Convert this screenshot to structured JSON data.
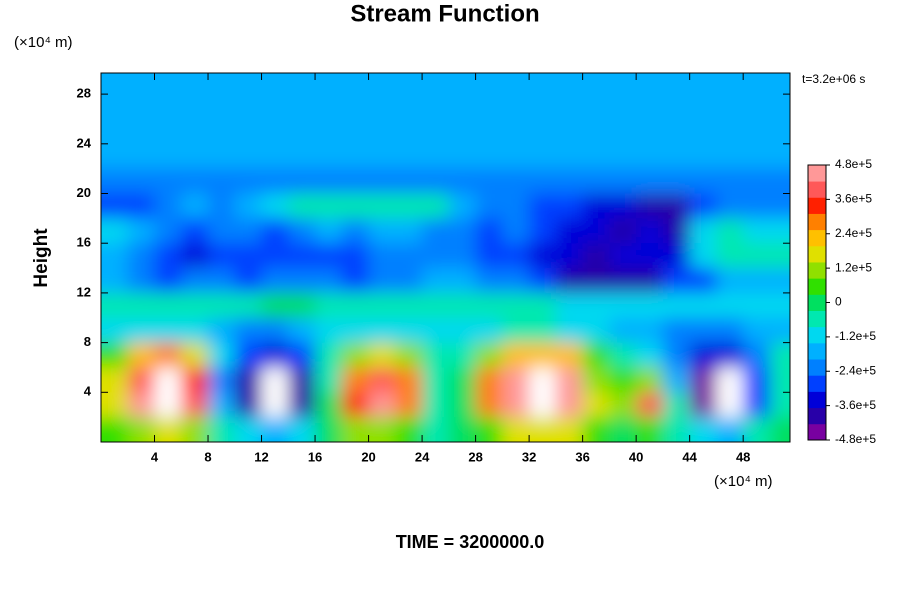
{
  "chart_data": {
    "type": "contour",
    "title": "Stream Function",
    "ylabel": "Height",
    "y_unit_label": "(×10⁴ m)",
    "x_unit_label": "(×10⁴ m)",
    "time_note": "t=3.2e+06 s",
    "footer": "TIME = 3200000.0",
    "xlim": [
      0,
      51.5
    ],
    "ylim": [
      0,
      29.7
    ],
    "xticks": [
      4,
      8,
      12,
      16,
      20,
      24,
      28,
      32,
      36,
      40,
      44,
      48
    ],
    "yticks": [
      4,
      8,
      12,
      16,
      20,
      24,
      28
    ],
    "grid": false,
    "x": [
      1,
      3,
      5,
      7,
      9,
      11,
      13,
      15,
      17,
      19,
      21,
      23,
      25,
      27,
      29,
      31,
      33,
      35,
      37,
      39,
      41,
      43,
      45,
      47,
      49,
      51
    ],
    "y": [
      29,
      27,
      25,
      23,
      21,
      19,
      17,
      15,
      13,
      11,
      9,
      7,
      5,
      3,
      1
    ],
    "z": [
      [
        -180000.0,
        -180000.0,
        -180000.0,
        -180000.0,
        -180000.0,
        -180000.0,
        -180000.0,
        -180000.0,
        -180000.0,
        -180000.0,
        -180000.0,
        -180000.0,
        -180000.0,
        -180000.0,
        -180000.0,
        -180000.0,
        -180000.0,
        -180000.0,
        -180000.0,
        -180000.0,
        -180000.0,
        -180000.0,
        -180000.0,
        -180000.0,
        -180000.0,
        -180000.0
      ],
      [
        -180000.0,
        -180000.0,
        -180000.0,
        -180000.0,
        -180000.0,
        -180000.0,
        -180000.0,
        -180000.0,
        -180000.0,
        -180000.0,
        -180000.0,
        -180000.0,
        -180000.0,
        -180000.0,
        -180000.0,
        -180000.0,
        -180000.0,
        -180000.0,
        -180000.0,
        -180000.0,
        -180000.0,
        -180000.0,
        -180000.0,
        -180000.0,
        -180000.0,
        -180000.0
      ],
      [
        -180000.0,
        -180000.0,
        -180000.0,
        -180000.0,
        -180000.0,
        -180000.0,
        -180000.0,
        -180000.0,
        -180000.0,
        -180000.0,
        -180000.0,
        -180000.0,
        -170000.0,
        -170000.0,
        -170000.0,
        -170000.0,
        -180000.0,
        -180000.0,
        -180000.0,
        -180000.0,
        -180000.0,
        -180000.0,
        -180000.0,
        -180000.0,
        -180000.0,
        -180000.0
      ],
      [
        -190000.0,
        -190000.0,
        -190000.0,
        -190000.0,
        -190000.0,
        -190000.0,
        -190000.0,
        -190000.0,
        -190000.0,
        -190000.0,
        -190000.0,
        -180000.0,
        -170000.0,
        -170000.0,
        -170000.0,
        -170000.0,
        -170000.0,
        -190000.0,
        -190000.0,
        -190000.0,
        -190000.0,
        -190000.0,
        -190000.0,
        -190000.0,
        -190000.0,
        -190000.0
      ],
      [
        -200000.0,
        -200000.0,
        -200000.0,
        -200000.0,
        -200000.0,
        -200000.0,
        -220000.0,
        -220000.0,
        -220000.0,
        -220000.0,
        -220000.0,
        -220000.0,
        -220000.0,
        -220000.0,
        -220000.0,
        -220000.0,
        -220000.0,
        -220000.0,
        -220000.0,
        -220000.0,
        -220000.0,
        -220000.0,
        -220000.0,
        -220000.0,
        -220000.0,
        -220000.0
      ],
      [
        -260000.0,
        -300000.0,
        -240000.0,
        -160000.0,
        -220000.0,
        -180000.0,
        -140000.0,
        -80000.0,
        -60000.0,
        -50000.0,
        -50000.0,
        -60000.0,
        -80000.0,
        -160000.0,
        -200000.0,
        -220000.0,
        -260000.0,
        -300000.0,
        -320000.0,
        -340000.0,
        -380000.0,
        -400000.0,
        -280000.0,
        -200000.0,
        -220000.0,
        -240000.0
      ],
      [
        -120000.0,
        -160000.0,
        -220000.0,
        -260000.0,
        -200000.0,
        -240000.0,
        -280000.0,
        -220000.0,
        -180000.0,
        -200000.0,
        -180000.0,
        -160000.0,
        -200000.0,
        -240000.0,
        -260000.0,
        -240000.0,
        -300000.0,
        -340000.0,
        -360000.0,
        -380000.0,
        -360000.0,
        -400000.0,
        -140000.0,
        -80000.0,
        -100000.0,
        -120000.0
      ],
      [
        -160000.0,
        -240000.0,
        -300000.0,
        -320000.0,
        -260000.0,
        -300000.0,
        -260000.0,
        -280000.0,
        -300000.0,
        -260000.0,
        -220000.0,
        -240000.0,
        -200000.0,
        -220000.0,
        -260000.0,
        -280000.0,
        -320000.0,
        -360000.0,
        -380000.0,
        -360000.0,
        -340000.0,
        -320000.0,
        -120000.0,
        -60000.0,
        -40000.0,
        -60000.0
      ],
      [
        -180000.0,
        -200000.0,
        -280000.0,
        -220000.0,
        -240000.0,
        -260000.0,
        -220000.0,
        -200000.0,
        -240000.0,
        -260000.0,
        -240000.0,
        -220000.0,
        -180000.0,
        -180000.0,
        -200000.0,
        -220000.0,
        -280000.0,
        -380000.0,
        -400000.0,
        -400000.0,
        -380000.0,
        -300000.0,
        -260000.0,
        -180000.0,
        -160000.0,
        -180000.0
      ],
      [
        -80000.0,
        -60000.0,
        -80000.0,
        -60000.0,
        -40000.0,
        -30000.0,
        -20000.0,
        -20000.0,
        -30000.0,
        -40000.0,
        -40000.0,
        -30000.0,
        -30000.0,
        -40000.0,
        -60000.0,
        -60000.0,
        -80000.0,
        -100000.0,
        -120000.0,
        -140000.0,
        -140000.0,
        -120000.0,
        -140000.0,
        -100000.0,
        -100000.0,
        -120000.0
      ],
      [
        -140000.0,
        -120000.0,
        -100000.0,
        -100000.0,
        -160000.0,
        -200000.0,
        -220000.0,
        -180000.0,
        -120000.0,
        -100000.0,
        -100000.0,
        -120000.0,
        -140000.0,
        -120000.0,
        -100000.0,
        -80000.0,
        -80000.0,
        -100000.0,
        -140000.0,
        -160000.0,
        -160000.0,
        -200000.0,
        -240000.0,
        -220000.0,
        -180000.0,
        -160000.0
      ],
      [
        80000.0,
        220000.0,
        260000.0,
        160000.0,
        -140000.0,
        -300000.0,
        -360000.0,
        -280000.0,
        -60000.0,
        120000.0,
        160000.0,
        100000.0,
        -80000.0,
        -40000.0,
        100000.0,
        200000.0,
        240000.0,
        200000.0,
        60000.0,
        -60000.0,
        -100000.0,
        -220000.0,
        -340000.0,
        -360000.0,
        -200000.0,
        -80000.0
      ],
      [
        180000.0,
        420000.0,
        520000.0,
        360000.0,
        -200000.0,
        -420000.0,
        -520000.0,
        -380000.0,
        -40000.0,
        300000.0,
        400000.0,
        260000.0,
        -60000.0,
        20000.0,
        280000.0,
        460000.0,
        520000.0,
        460000.0,
        140000.0,
        40000.0,
        100000.0,
        -160000.0,
        -460000.0,
        -520000.0,
        -260000.0,
        -60000.0
      ],
      [
        160000.0,
        440000.0,
        540000.0,
        380000.0,
        -160000.0,
        -420000.0,
        -540000.0,
        -380000.0,
        -20000.0,
        320000.0,
        440000.0,
        280000.0,
        -80000.0,
        20000.0,
        300000.0,
        480000.0,
        540000.0,
        480000.0,
        160000.0,
        120000.0,
        380000.0,
        -60000.0,
        -480000.0,
        -540000.0,
        -280000.0,
        -40000.0
      ],
      [
        40000.0,
        140000.0,
        180000.0,
        120000.0,
        -60000.0,
        -140000.0,
        -160000.0,
        -120000.0,
        -20000.0,
        100000.0,
        140000.0,
        80000.0,
        -60000.0,
        0,
        80000.0,
        160000.0,
        180000.0,
        160000.0,
        40000.0,
        20000.0,
        80000.0,
        -40000.0,
        -140000.0,
        -160000.0,
        -80000.0,
        -20000.0
      ]
    ],
    "zlim": [
      -480000,
      480000
    ],
    "zticks": [
      {
        "value": 480000,
        "label": "4.8e+5"
      },
      {
        "value": 360000,
        "label": "3.6e+5"
      },
      {
        "value": 240000,
        "label": "2.4e+5"
      },
      {
        "value": 120000,
        "label": "1.2e+5"
      },
      0,
      {
        "value": -120000,
        "label": "-1.2e+5"
      },
      {
        "value": -240000,
        "label": "-2.4e+5"
      },
      {
        "value": -360000,
        "label": "-3.6e+5"
      },
      {
        "value": -480000,
        "label": "-4.8e+5"
      }
    ],
    "colormap": [
      "#7800a0",
      "#2800a8",
      "#0000d8",
      "#0040ff",
      "#0080ff",
      "#00b0ff",
      "#00d8f0",
      "#00e8b0",
      "#00e060",
      "#30e000",
      "#90e000",
      "#e0e000",
      "#ffc000",
      "#ff8000",
      "#ff2000",
      "#ff5858",
      "#ff9898"
    ],
    "out_of_range_color": "#ffffff"
  }
}
